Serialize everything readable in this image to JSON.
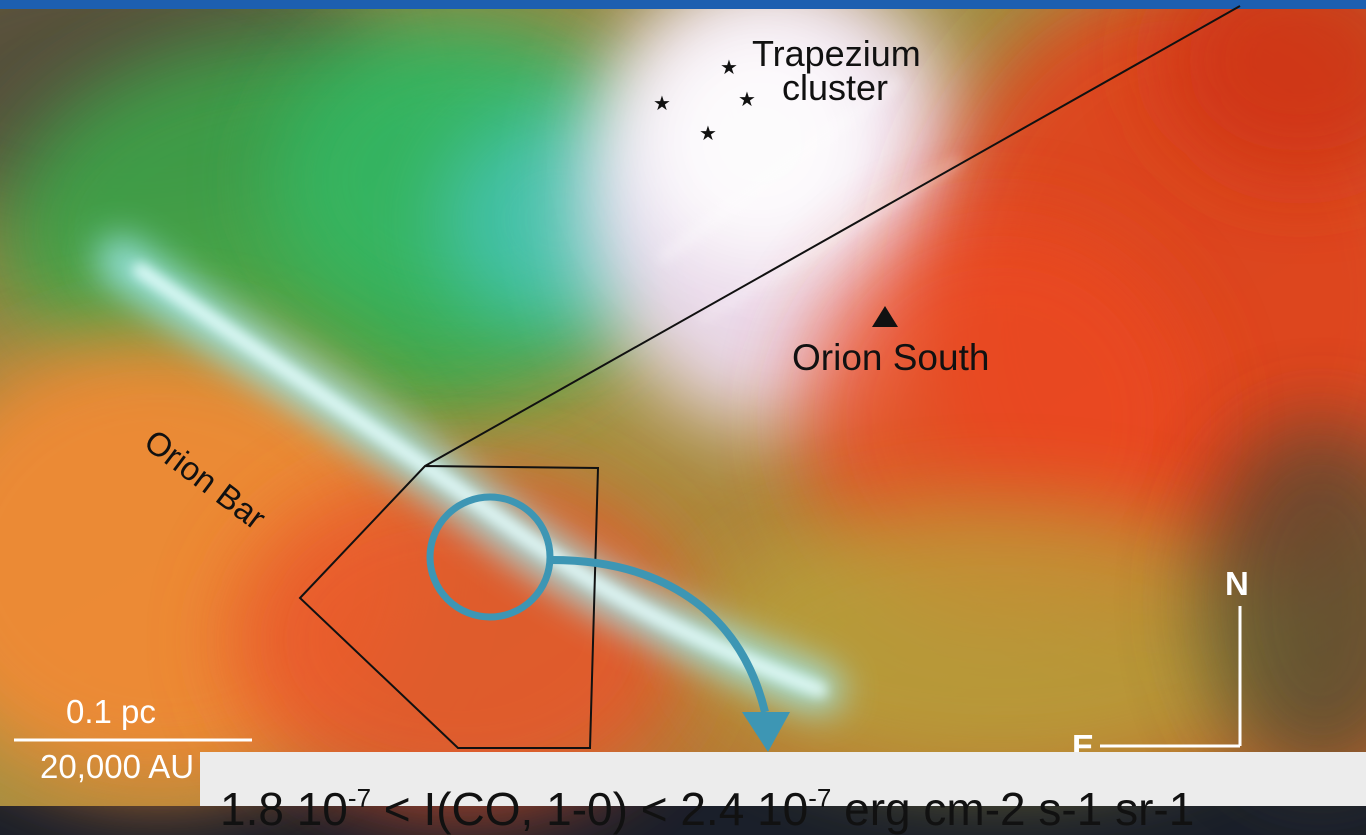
{
  "colors": {
    "top_band": "#1d5fb0",
    "arrow": "#3d96b4",
    "overlay_lines": "#111111",
    "caption_bg": "#ececec"
  },
  "labels": {
    "trapezium_line1": "Trapezium",
    "trapezium_line2": "cluster",
    "orion_south": "Orion South",
    "orion_bar": "Orion Bar",
    "north": "N",
    "east": "E"
  },
  "scale_bar": {
    "parsec": "0.1 pc",
    "au": "20,000 AU"
  },
  "caption": {
    "coef_low": "1.8 10",
    "exp_low": "-7",
    "middle": " < I(CO, 1-0) < 2.4 10",
    "exp_high": "-7",
    "unit": " erg cm-2 s-1 sr-1"
  }
}
